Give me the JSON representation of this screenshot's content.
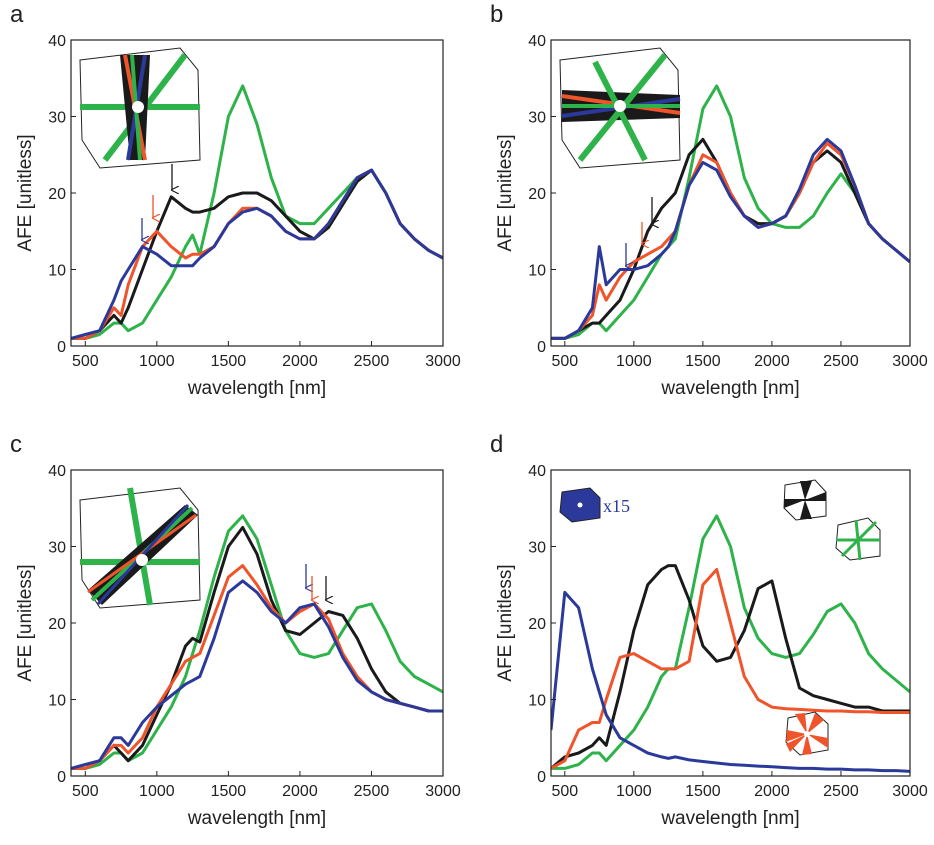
{
  "chart_data": [
    {
      "type": "line",
      "panel_label": "a",
      "xlabel": "wavelength [nm]",
      "ylabel": "AFE [unitless]",
      "xlim": [
        400,
        3000
      ],
      "ylim": [
        0,
        40
      ],
      "xticks": [
        500,
        1000,
        1500,
        2000,
        2500,
        3000
      ],
      "yticks": [
        0,
        10,
        20,
        30,
        40
      ],
      "x": [
        400,
        500,
        600,
        700,
        750,
        800,
        900,
        1000,
        1100,
        1200,
        1250,
        1300,
        1400,
        1500,
        1600,
        1700,
        1800,
        1900,
        2000,
        2100,
        2200,
        2300,
        2400,
        2500,
        2600,
        2700,
        2800,
        2900,
        3000
      ],
      "series": [
        {
          "color": "#2db34a",
          "values": [
            1,
            1,
            1.5,
            3,
            3,
            2,
            3,
            6,
            9,
            13,
            14.5,
            12,
            20,
            30,
            34,
            29,
            22,
            17,
            16,
            16,
            18,
            20,
            22,
            23,
            20,
            16,
            14,
            12.5,
            11.5
          ]
        },
        {
          "color": "#1a1a1a",
          "values": [
            1,
            1,
            2,
            4,
            3,
            5,
            10,
            15,
            19.5,
            18,
            17.5,
            17.5,
            18,
            19.5,
            20,
            20,
            19,
            17,
            15,
            14,
            15.5,
            18.5,
            21.5,
            23,
            20,
            16,
            14,
            12.5,
            11.5
          ]
        },
        {
          "color": "#f0542a",
          "values": [
            1,
            1,
            2,
            5,
            4,
            8,
            13,
            15,
            13,
            11.5,
            12,
            12,
            13,
            16,
            18,
            18,
            17,
            15,
            14,
            14,
            16,
            19,
            22,
            23,
            20,
            16,
            14,
            12.5,
            11.5
          ]
        },
        {
          "color": "#2b3a9a",
          "values": [
            1,
            1.5,
            2,
            6,
            8.5,
            10,
            13,
            12,
            10.5,
            10.5,
            10.5,
            11.5,
            13,
            16,
            17.5,
            18,
            17,
            15,
            14,
            14,
            16,
            19,
            22,
            23,
            20,
            16,
            14,
            12.5,
            11.5
          ]
        }
      ]
    },
    {
      "type": "line",
      "panel_label": "b",
      "xlabel": "wavelength [nm]",
      "ylabel": "AFE [unitless]",
      "xlim": [
        400,
        3000
      ],
      "ylim": [
        0,
        40
      ],
      "xticks": [
        500,
        1000,
        1500,
        2000,
        2500,
        3000
      ],
      "yticks": [
        0,
        10,
        20,
        30,
        40
      ],
      "x": [
        400,
        500,
        600,
        700,
        750,
        800,
        900,
        1000,
        1100,
        1200,
        1250,
        1300,
        1400,
        1500,
        1600,
        1700,
        1800,
        1900,
        2000,
        2100,
        2200,
        2300,
        2400,
        2500,
        2600,
        2700,
        2800,
        2900,
        3000
      ],
      "series": [
        {
          "color": "#2db34a",
          "values": [
            1,
            1,
            1.5,
            3,
            3,
            2,
            4,
            6,
            9,
            12,
            13,
            14,
            22,
            31,
            34,
            30,
            22,
            18,
            16,
            15.5,
            15.5,
            17,
            20,
            22.5,
            20,
            16,
            14,
            12.5,
            11
          ]
        },
        {
          "color": "#1a1a1a",
          "values": [
            1,
            1,
            2,
            3,
            3,
            4,
            6,
            10,
            15,
            18,
            19,
            20,
            25,
            27,
            24,
            20,
            17,
            16,
            16,
            17,
            20,
            24,
            25.5,
            24,
            20,
            16,
            14,
            12.5,
            11
          ]
        },
        {
          "color": "#f0542a",
          "values": [
            1,
            1,
            2,
            4,
            8,
            6,
            9,
            11,
            12,
            13,
            14,
            15,
            21,
            25,
            24,
            20,
            17,
            15.5,
            16,
            17,
            20,
            24,
            26.5,
            25,
            21,
            16,
            14,
            12.5,
            11
          ]
        },
        {
          "color": "#2b3a9a",
          "values": [
            1,
            1,
            2,
            5,
            13,
            8,
            10,
            10,
            10.5,
            12,
            13,
            15,
            21,
            24,
            23,
            19.5,
            17,
            15.5,
            16,
            17,
            20.5,
            25,
            27,
            25.5,
            21,
            16,
            14,
            12.5,
            11
          ]
        }
      ]
    },
    {
      "type": "line",
      "panel_label": "c",
      "xlabel": "wavelength [nm]",
      "ylabel": "AFE [unitless]",
      "xlim": [
        400,
        3000
      ],
      "ylim": [
        0,
        40
      ],
      "xticks": [
        500,
        1000,
        1500,
        2000,
        2500,
        3000
      ],
      "yticks": [
        0,
        10,
        20,
        30,
        40
      ],
      "x": [
        400,
        500,
        600,
        700,
        750,
        800,
        900,
        1000,
        1100,
        1200,
        1250,
        1300,
        1400,
        1500,
        1600,
        1700,
        1800,
        1900,
        2000,
        2100,
        2200,
        2300,
        2400,
        2500,
        2600,
        2700,
        2800,
        2900,
        3000
      ],
      "series": [
        {
          "color": "#2db34a",
          "values": [
            1,
            1,
            1.5,
            3,
            3,
            2,
            3,
            6,
            9,
            13,
            16,
            19,
            26,
            32,
            34,
            31,
            25,
            19,
            16,
            15.5,
            16,
            19,
            22,
            22.5,
            19,
            15,
            13,
            12,
            11
          ]
        },
        {
          "color": "#1a1a1a",
          "values": [
            1,
            1,
            2,
            4,
            3,
            2,
            4,
            8,
            12,
            17,
            18,
            17.5,
            24,
            30,
            32.5,
            29,
            23,
            19,
            18.5,
            20,
            21.5,
            21,
            18,
            14,
            11,
            9.5,
            9,
            8.5,
            8.5
          ]
        },
        {
          "color": "#f0542a",
          "values": [
            1,
            1,
            2,
            4,
            4,
            3,
            5,
            9,
            12,
            15,
            15.5,
            16,
            21,
            26,
            27.5,
            25,
            22,
            20,
            21.5,
            22.5,
            20.5,
            16,
            13,
            11,
            10,
            9.5,
            9,
            8.5,
            8.5
          ]
        },
        {
          "color": "#2b3a9a",
          "values": [
            1,
            1.5,
            2,
            5,
            5,
            4,
            7,
            9,
            10.5,
            12,
            12.5,
            13,
            18,
            24,
            25.5,
            24,
            21.5,
            20,
            22,
            22.5,
            19.5,
            15.5,
            12.5,
            11,
            10,
            9.5,
            9,
            8.5,
            8.5
          ]
        }
      ]
    },
    {
      "type": "line",
      "panel_label": "d",
      "xlabel": "wavelength [nm]",
      "ylabel": "AFE [unitless]",
      "annotation": "x15",
      "xlim": [
        400,
        3000
      ],
      "ylim": [
        0,
        40
      ],
      "xticks": [
        500,
        1000,
        1500,
        2000,
        2500,
        3000
      ],
      "yticks": [
        0,
        10,
        20,
        30,
        40
      ],
      "x": [
        400,
        500,
        600,
        700,
        750,
        800,
        900,
        1000,
        1100,
        1200,
        1250,
        1300,
        1400,
        1500,
        1600,
        1700,
        1800,
        1900,
        2000,
        2100,
        2200,
        2300,
        2400,
        2500,
        2600,
        2700,
        2800,
        2900,
        3000
      ],
      "series": [
        {
          "color": "#2db34a",
          "values": [
            1,
            1,
            1.5,
            3,
            3,
            2,
            4,
            6,
            9,
            13,
            14,
            14,
            22,
            31,
            34,
            30,
            22,
            18,
            16,
            15.5,
            16,
            18.5,
            21.5,
            22.5,
            20,
            16,
            14,
            12.5,
            11
          ]
        },
        {
          "color": "#1a1a1a",
          "values": [
            1,
            2.5,
            3,
            4,
            5,
            4,
            11,
            19,
            25,
            27,
            27.5,
            27.5,
            23,
            17,
            15,
            15.5,
            19,
            24.5,
            25.5,
            18,
            11.5,
            10.5,
            10,
            9.5,
            9,
            9,
            8.5,
            8.5,
            8.5
          ]
        },
        {
          "color": "#f0542a",
          "values": [
            1,
            2,
            6,
            7,
            7,
            10,
            15.5,
            16,
            15,
            14,
            14,
            14,
            15,
            25,
            27,
            20,
            13,
            10,
            9,
            8.8,
            8.7,
            8.6,
            8.5,
            8.5,
            8.4,
            8.4,
            8.3,
            8.3,
            8.3
          ]
        },
        {
          "color": "#2b3a9a",
          "values": [
            6,
            24,
            22,
            14,
            11,
            8,
            5,
            4,
            3,
            2.5,
            2.3,
            2.5,
            2.1,
            1.9,
            1.7,
            1.5,
            1.4,
            1.3,
            1.2,
            1.1,
            1.0,
            1.0,
            0.9,
            0.9,
            0.8,
            0.8,
            0.7,
            0.7,
            0.6
          ]
        }
      ]
    }
  ]
}
